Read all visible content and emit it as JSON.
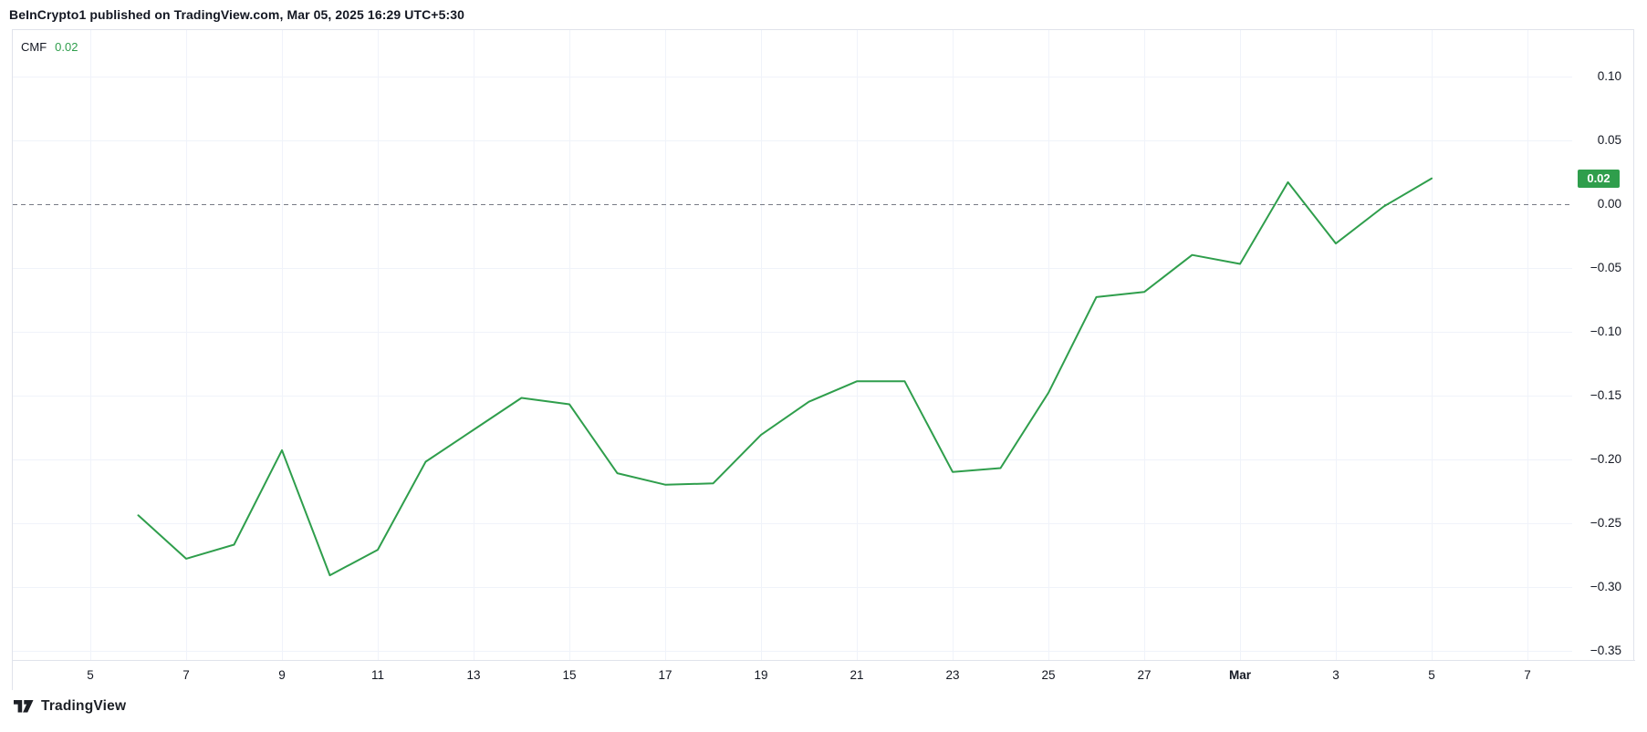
{
  "attribution": "BeInCrypto1 published on TradingView.com, Mar 05, 2025 16:29 UTC+5:30",
  "legend": {
    "indicator": "CMF",
    "value": "0.02"
  },
  "footer": {
    "brand": "TradingView"
  },
  "colors": {
    "line": "#2f9e4c",
    "badge_bg": "#2f9e4c",
    "badge_text": "#ffffff",
    "grid": "#f0f3fa",
    "border": "#e0e3eb",
    "text": "#131722",
    "zero_line": "#787b86"
  },
  "price_scale": {
    "labels": [
      {
        "text": "0.10",
        "value": 0.1
      },
      {
        "text": "0.05",
        "value": 0.05
      },
      {
        "text": "0.00",
        "value": 0.0
      },
      {
        "text": "−0.05",
        "value": -0.05
      },
      {
        "text": "−0.10",
        "value": -0.1
      },
      {
        "text": "−0.15",
        "value": -0.15
      },
      {
        "text": "−0.20",
        "value": -0.2
      },
      {
        "text": "−0.25",
        "value": -0.25
      },
      {
        "text": "−0.30",
        "value": -0.3
      },
      {
        "text": "−0.35",
        "value": -0.35
      }
    ],
    "badge": {
      "text": "0.02",
      "value": 0.02
    }
  },
  "time_axis": {
    "ticks": [
      {
        "text": "5",
        "day": 0,
        "bold": false
      },
      {
        "text": "7",
        "day": 2,
        "bold": false
      },
      {
        "text": "9",
        "day": 4,
        "bold": false
      },
      {
        "text": "11",
        "day": 6,
        "bold": false
      },
      {
        "text": "13",
        "day": 8,
        "bold": false
      },
      {
        "text": "15",
        "day": 10,
        "bold": false
      },
      {
        "text": "17",
        "day": 12,
        "bold": false
      },
      {
        "text": "19",
        "day": 14,
        "bold": false
      },
      {
        "text": "21",
        "day": 16,
        "bold": false
      },
      {
        "text": "23",
        "day": 18,
        "bold": false
      },
      {
        "text": "25",
        "day": 20,
        "bold": false
      },
      {
        "text": "27",
        "day": 22,
        "bold": false
      },
      {
        "text": "Mar",
        "day": 24,
        "bold": true
      },
      {
        "text": "3",
        "day": 26,
        "bold": false
      },
      {
        "text": "5",
        "day": 28,
        "bold": false
      },
      {
        "text": "7",
        "day": 30,
        "bold": false
      }
    ]
  },
  "chart_data": {
    "type": "line",
    "title": "CMF (Chaikin Money Flow)",
    "x": [
      "Feb 6",
      "Feb 7",
      "Feb 8",
      "Feb 9",
      "Feb 10",
      "Feb 11",
      "Feb 12",
      "Feb 13",
      "Feb 14",
      "Feb 15",
      "Feb 16",
      "Feb 17",
      "Feb 18",
      "Feb 19",
      "Feb 20",
      "Feb 21",
      "Feb 22",
      "Feb 23",
      "Feb 24",
      "Feb 25",
      "Feb 26",
      "Feb 27",
      "Feb 28",
      "Mar 1",
      "Mar 2",
      "Mar 3",
      "Mar 4",
      "Mar 5"
    ],
    "start_day_offset": 1,
    "values": [
      -0.244,
      -0.278,
      -0.267,
      -0.193,
      -0.291,
      -0.271,
      -0.202,
      -0.177,
      -0.152,
      -0.157,
      -0.211,
      -0.22,
      -0.219,
      -0.181,
      -0.155,
      -0.139,
      -0.139,
      -0.21,
      -0.207,
      -0.148,
      -0.073,
      -0.069,
      -0.04,
      -0.047,
      0.017,
      -0.031,
      -0.002,
      0.02
    ],
    "last_value": 0.02,
    "ylim": [
      -0.37,
      0.125
    ],
    "y_gridlines": [
      0.1,
      0.05,
      -0.05,
      -0.1,
      -0.15,
      -0.2,
      -0.25,
      -0.3,
      -0.35
    ],
    "zero_line": {
      "value": 0,
      "style": "dashed"
    },
    "x_tick_labels": [
      "5",
      "7",
      "9",
      "11",
      "13",
      "15",
      "17",
      "19",
      "21",
      "23",
      "25",
      "27",
      "Mar",
      "3",
      "5",
      "7"
    ],
    "legend_position": "top-left",
    "grid": true,
    "line_color": "#2f9e4c"
  }
}
